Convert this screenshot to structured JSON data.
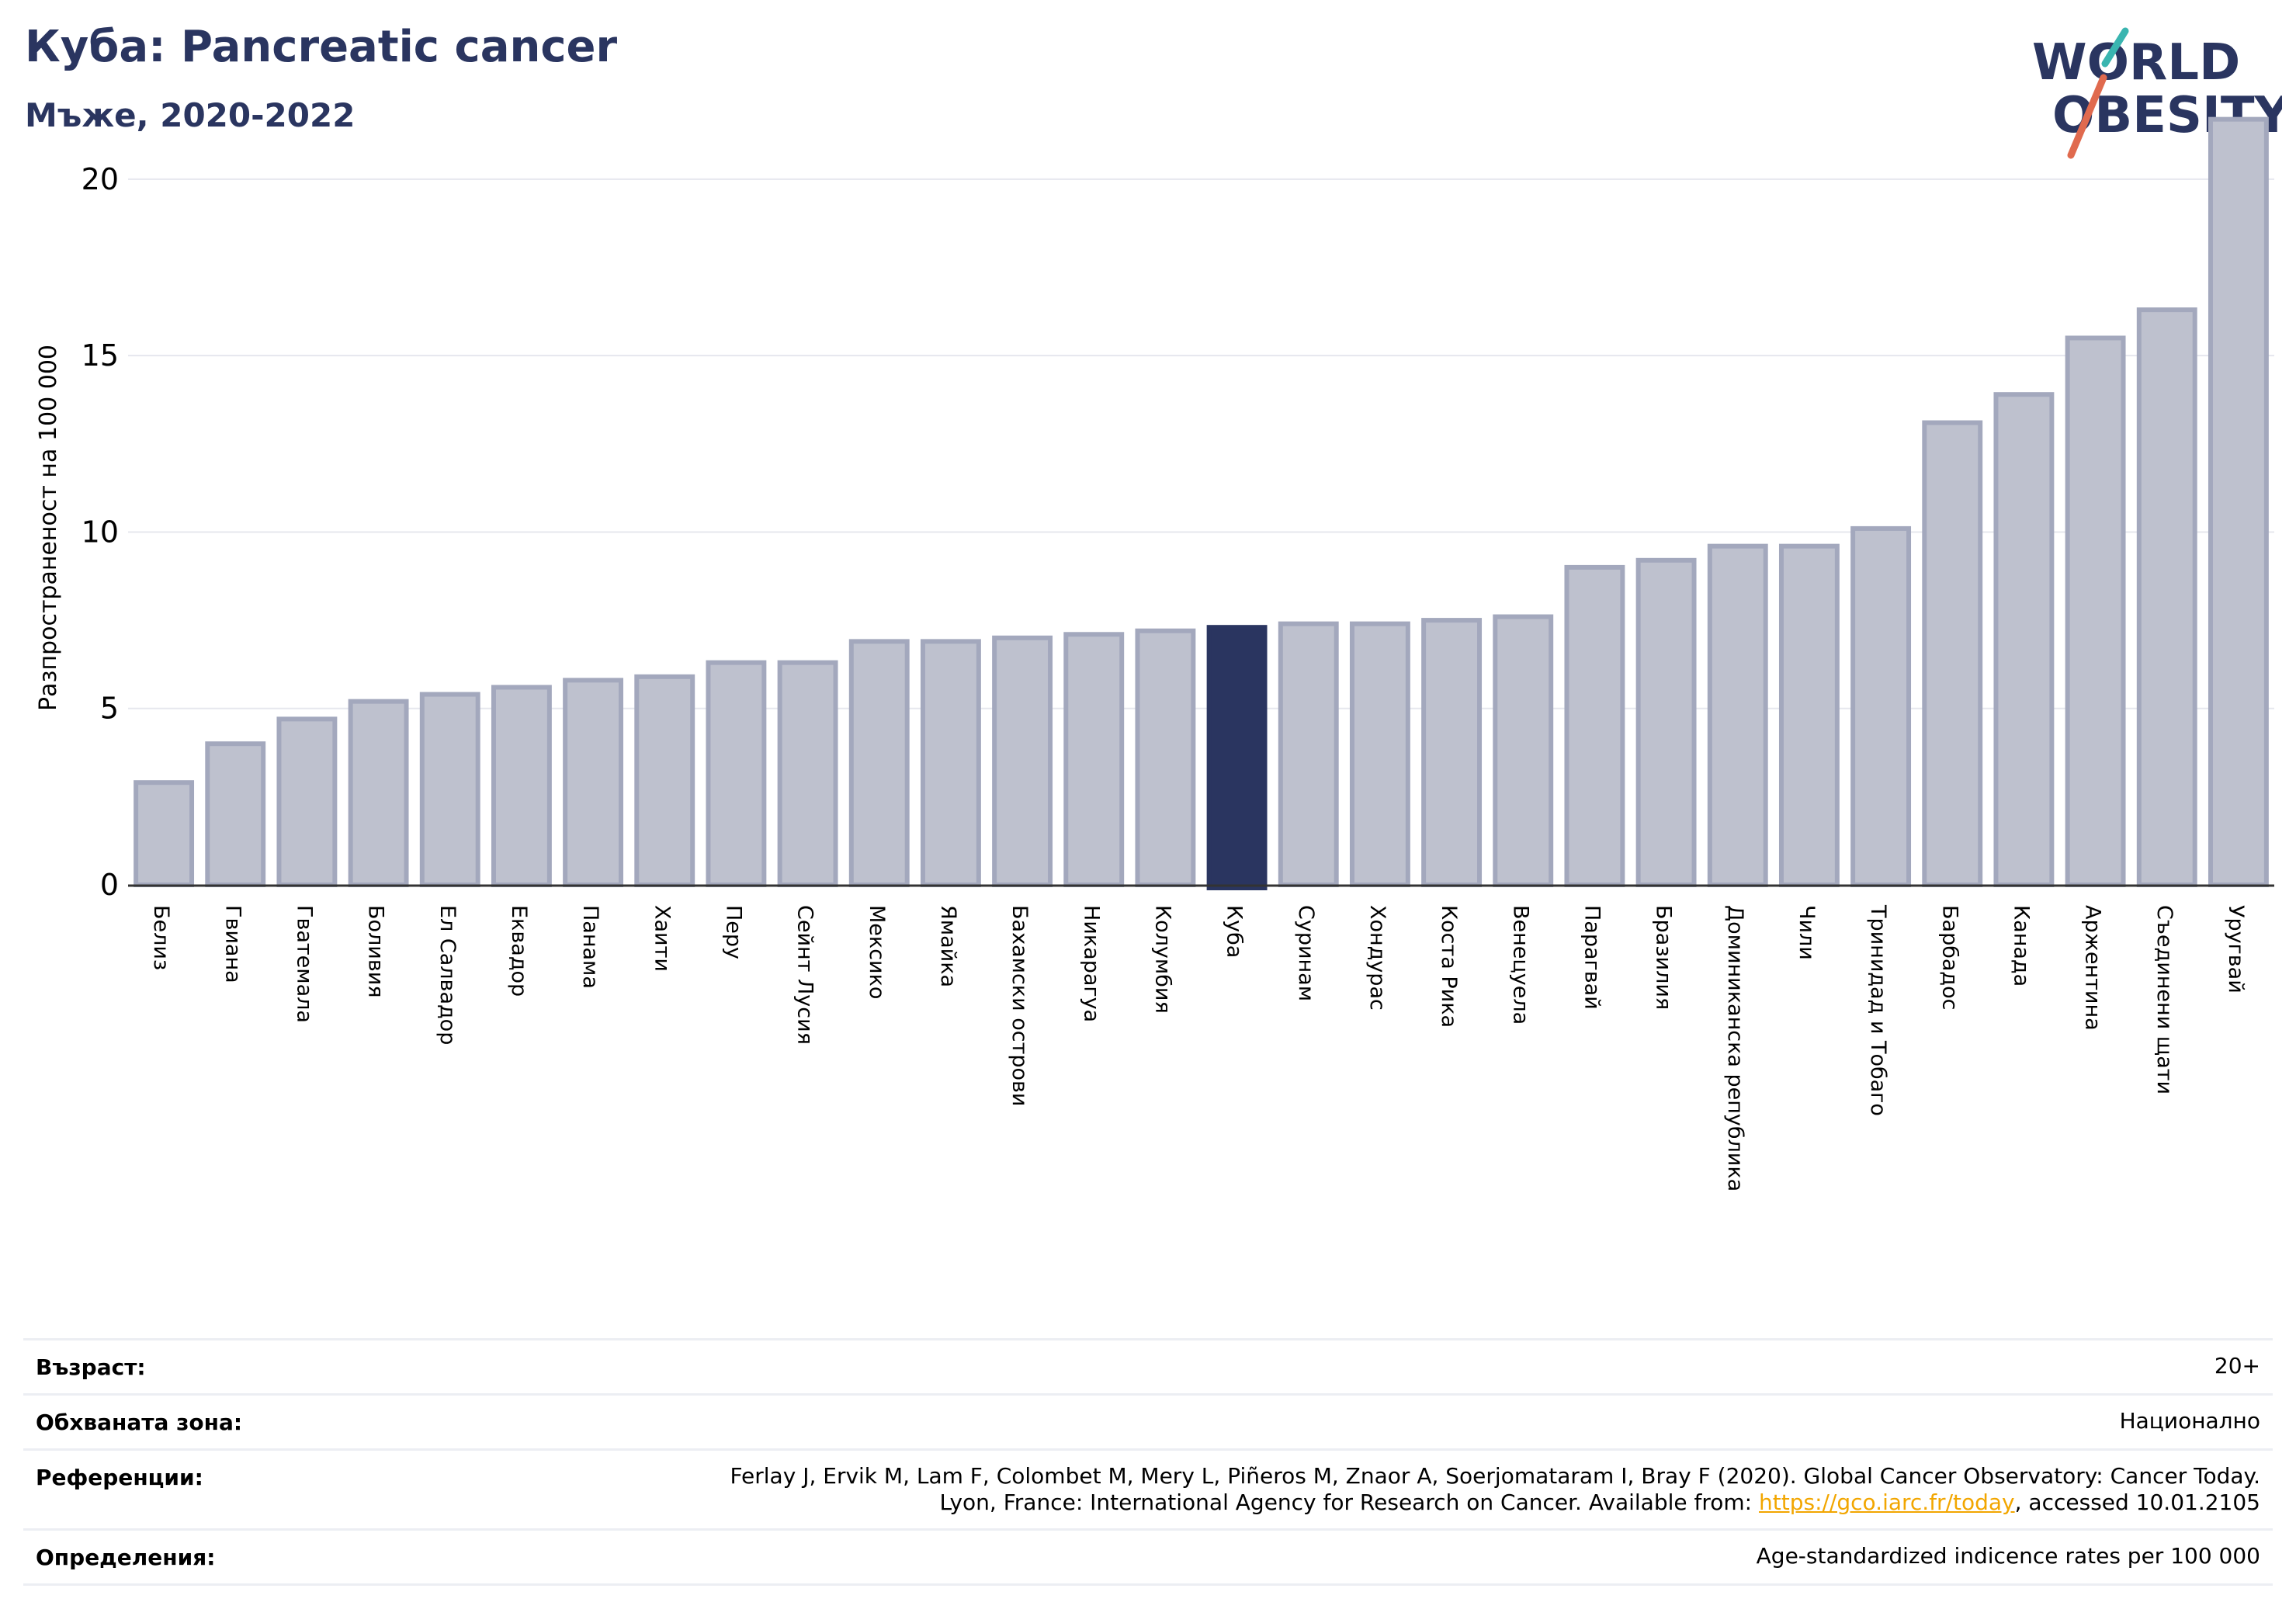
{
  "header": {
    "title": "Куба: Pancreatic cancer",
    "subtitle": "Мъже, 2020-2022"
  },
  "logo": {
    "line1": "WORLD",
    "line2": "OBESITY",
    "text_color": "#2a3560",
    "slash_top_color": "#3ab5b0",
    "slash_bottom_color": "#e06a4e"
  },
  "chart_data": {
    "type": "bar",
    "ylabel": "Разпространеност  на 100 000",
    "ylim": [
      0,
      22
    ],
    "yticks": [
      0,
      5,
      10,
      15,
      20
    ],
    "grid": true,
    "highlight": "Куба",
    "colors": {
      "bar": "#bec1ce",
      "bar_edge": "#a3a8bd",
      "highlight": "#2a3560",
      "grid": "#e6e7ee",
      "axis": "#333333"
    },
    "categories": [
      "Белиз",
      "Гвиана",
      "Гватемала",
      "Боливия",
      "Ел Салвадор",
      "Еквадор",
      "Панама",
      "Хаити",
      "Перу",
      "Сейнт Лусия",
      "Мексико",
      "Ямайка",
      "Бахамски острови",
      "Никарагуа",
      "Колумбия",
      "Куба",
      "Суринам",
      "Хондурас",
      "Коста Рика",
      "Венецуела",
      "Парагвай",
      "Бразилия",
      "Доминиканска република",
      "Чили",
      "Тринидад и Тобаго",
      "Барбадос",
      "Канада",
      "Аржентина",
      "Съединени щати",
      "Уругвай"
    ],
    "values": [
      2.9,
      4.0,
      4.7,
      5.2,
      5.4,
      5.6,
      5.8,
      5.9,
      6.3,
      6.3,
      6.9,
      6.9,
      7.0,
      7.1,
      7.2,
      7.3,
      7.4,
      7.4,
      7.5,
      7.6,
      9.0,
      9.2,
      9.6,
      9.6,
      10.1,
      13.1,
      13.9,
      15.5,
      16.3,
      21.7
    ]
  },
  "info": {
    "age_label": "Възраст:",
    "age_value": "20+",
    "coverage_label": "Обхваната зона:",
    "coverage_value": "Национално",
    "references_label": "Референции:",
    "references_line1": "Ferlay J, Ervik M, Lam F, Colombet M, Mery L, Piñeros M, Znaor A, Soerjomataram I, Bray F (2020). Global Cancer Observatory: Cancer Today.",
    "references_line2_pre": "Lyon, France: International Agency for Research on Cancer. Available from: ",
    "references_link": "https://gco.iarc.fr/today",
    "references_line2_post": ", accessed 10.01.2105",
    "definitions_label": "Определения:",
    "definitions_value": "Age-standardized indicence rates per 100 000"
  }
}
